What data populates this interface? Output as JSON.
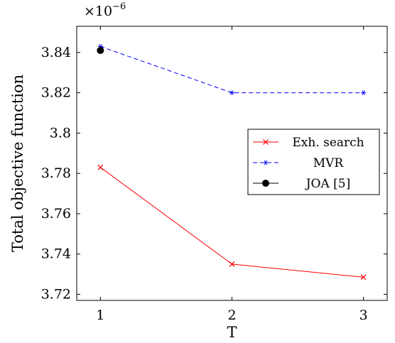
{
  "chart_data": {
    "type": "line",
    "xlabel": "T",
    "ylabel": "Total objective function",
    "y_multiplier": "×10",
    "y_multiplier_exp": "−6",
    "xlim": [
      0.82,
      3.18
    ],
    "ylim": [
      3.717,
      3.853
    ],
    "xticks": [
      {
        "value": 1,
        "label": "1"
      },
      {
        "value": 2,
        "label": "2"
      },
      {
        "value": 3,
        "label": "3"
      }
    ],
    "yticks": [
      {
        "value": 3.72,
        "label": "3.72"
      },
      {
        "value": 3.74,
        "label": "3.74"
      },
      {
        "value": 3.76,
        "label": "3.76"
      },
      {
        "value": 3.78,
        "label": "3.78"
      },
      {
        "value": 3.8,
        "label": "3.8"
      },
      {
        "value": 3.82,
        "label": "3.82"
      },
      {
        "value": 3.84,
        "label": "3.84"
      }
    ],
    "grid": false,
    "legend_position": "right",
    "series": [
      {
        "name": "Exh. search",
        "color": "#ff0000",
        "line_style": "solid",
        "marker": "x",
        "x": [
          1,
          2,
          3
        ],
        "y": [
          3.783,
          3.735,
          3.7285
        ]
      },
      {
        "name": "MVR",
        "color": "#0000ff",
        "line_style": "dashed",
        "marker": "star",
        "x": [
          1,
          2,
          3
        ],
        "y": [
          3.843,
          3.82,
          3.82
        ]
      },
      {
        "name": "JOA [5]",
        "color": "#000000",
        "line_style": "solid",
        "marker": "circle",
        "x": [
          1
        ],
        "y": [
          3.841
        ]
      }
    ]
  }
}
